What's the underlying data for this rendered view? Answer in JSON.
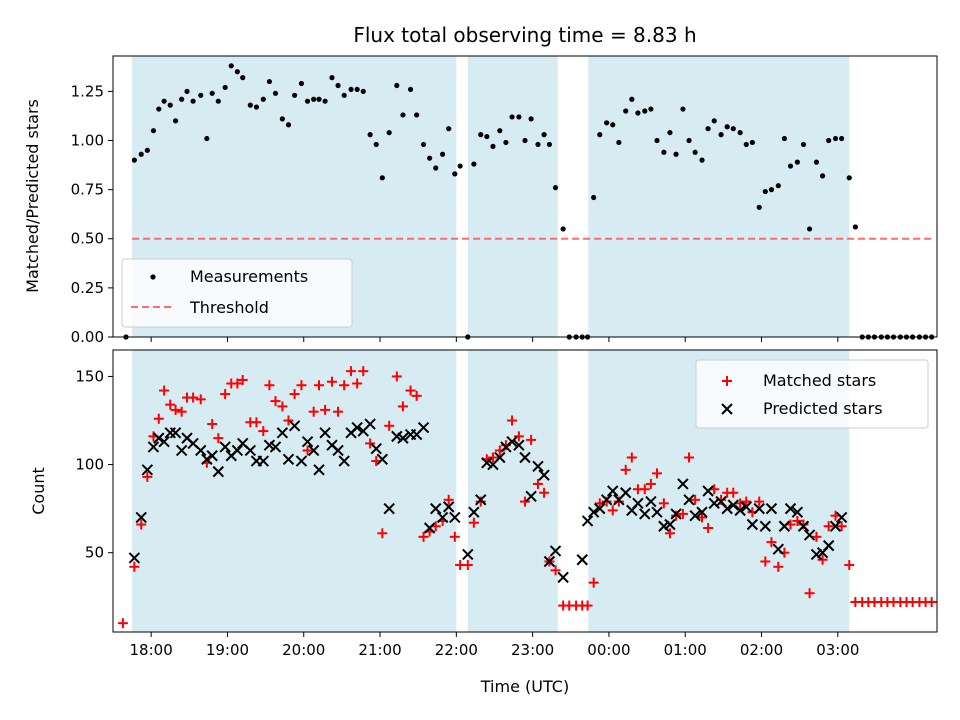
{
  "chart_data": [
    {
      "type": "scatter",
      "title": "Flux total observing time = 8.83 h",
      "xlabel": "",
      "ylabel": "Matched/Predicted stars",
      "ylim": [
        0,
        1.43
      ],
      "xlim_hours": [
        17.5,
        28.3
      ],
      "yticks": [
        0.0,
        0.25,
        0.5,
        0.75,
        1.0,
        1.25
      ],
      "ytick_labels": [
        "0.00",
        "0.25",
        "0.50",
        "0.75",
        "1.00",
        "1.25"
      ],
      "threshold": 0.5,
      "threshold_range_hours": [
        17.75,
        28.25
      ],
      "legend": {
        "position": "lower-left",
        "entries": [
          "Measurements",
          "Threshold"
        ]
      },
      "colors": {
        "points": "#000000",
        "threshold": "#ff6b6b"
      },
      "series": [
        {
          "name": "Measurements",
          "x": [
            17.67,
            17.78,
            17.87,
            17.95,
            18.03,
            18.1,
            18.17,
            18.25,
            18.32,
            18.4,
            18.47,
            18.55,
            18.65,
            18.73,
            18.8,
            18.88,
            18.97,
            19.05,
            19.13,
            19.2,
            19.3,
            19.38,
            19.47,
            19.55,
            19.63,
            19.72,
            19.8,
            19.88,
            19.97,
            20.05,
            20.13,
            20.2,
            20.28,
            20.37,
            20.45,
            20.53,
            20.62,
            20.7,
            20.78,
            20.87,
            20.95,
            21.03,
            21.12,
            21.22,
            21.3,
            21.4,
            21.48,
            21.57,
            21.65,
            21.73,
            21.82,
            21.9,
            21.98,
            22.05,
            22.15,
            22.23,
            22.32,
            22.4,
            22.48,
            22.57,
            22.65,
            22.73,
            22.82,
            22.9,
            22.98,
            23.07,
            23.15,
            23.22,
            23.3,
            23.4,
            23.48,
            23.57,
            23.65,
            23.72,
            23.8,
            23.88,
            23.97,
            24.05,
            24.13,
            24.22,
            24.3,
            24.38,
            24.47,
            24.55,
            24.63,
            24.72,
            24.8,
            24.88,
            24.97,
            25.05,
            25.13,
            25.22,
            25.3,
            25.38,
            25.47,
            25.55,
            25.63,
            25.72,
            25.8,
            25.88,
            25.97,
            26.05,
            26.13,
            26.22,
            26.3,
            26.38,
            26.47,
            26.55,
            26.63,
            26.72,
            26.8,
            26.88,
            26.97,
            27.05,
            27.15,
            27.23,
            27.32,
            27.4,
            27.48,
            27.57,
            27.65,
            27.73,
            27.82,
            27.9,
            27.98,
            28.07,
            28.15,
            28.23
          ],
          "y": [
            0.0,
            0.9,
            0.93,
            0.95,
            1.05,
            1.16,
            1.2,
            1.18,
            1.1,
            1.21,
            1.25,
            1.2,
            1.23,
            1.01,
            1.24,
            1.2,
            1.27,
            1.38,
            1.35,
            1.32,
            1.18,
            1.17,
            1.21,
            1.3,
            1.24,
            1.11,
            1.08,
            1.23,
            1.29,
            1.2,
            1.21,
            1.21,
            1.2,
            1.32,
            1.28,
            1.23,
            1.26,
            1.26,
            1.25,
            1.03,
            0.98,
            0.81,
            1.04,
            1.28,
            1.13,
            1.26,
            1.13,
            0.98,
            0.91,
            0.86,
            0.93,
            1.06,
            0.83,
            0.87,
            0.0,
            0.88,
            1.03,
            1.02,
            0.97,
            1.05,
            0.99,
            1.12,
            1.12,
            1.0,
            1.11,
            0.98,
            1.03,
            0.98,
            0.76,
            0.55,
            0.0,
            0.0,
            0.0,
            0.0,
            0.71,
            1.03,
            1.09,
            1.08,
            0.99,
            1.15,
            1.21,
            1.14,
            1.15,
            1.16,
            1.0,
            0.94,
            1.04,
            0.93,
            1.16,
            1.0,
            0.94,
            0.9,
            1.06,
            1.1,
            1.03,
            1.07,
            1.06,
            1.04,
            0.98,
            0.99,
            0.66,
            0.74,
            0.75,
            0.77,
            1.01,
            0.87,
            0.89,
            0.98,
            0.55,
            0.89,
            0.82,
            1.0,
            1.01,
            1.01,
            0.81,
            0.56,
            0.0,
            0.0,
            0.0,
            0.0,
            0.0,
            0.0,
            0.0,
            0.0,
            0.0,
            0.0,
            0.0,
            0.0
          ]
        }
      ]
    },
    {
      "type": "scatter",
      "title": "",
      "xlabel": "Time (UTC)",
      "ylabel": "Count",
      "ylim": [
        5,
        165
      ],
      "xlim_hours": [
        17.5,
        28.3
      ],
      "yticks": [
        50,
        100,
        150
      ],
      "ytick_labels": [
        "50",
        "100",
        "150"
      ],
      "xticks_hours": [
        18,
        19,
        20,
        21,
        22,
        23,
        24,
        25,
        26,
        27
      ],
      "xtick_labels": [
        "18:00",
        "19:00",
        "20:00",
        "21:00",
        "22:00",
        "23:00",
        "00:00",
        "01:00",
        "02:00",
        "03:00"
      ],
      "legend": {
        "position": "upper-right",
        "entries": [
          "Matched stars",
          "Predicted stars"
        ]
      },
      "colors": {
        "matched": "#ff0000",
        "predicted": "#000000"
      },
      "series": [
        {
          "name": "Matched stars",
          "marker": "plus",
          "x": [
            17.63,
            17.78,
            17.87,
            17.95,
            18.03,
            18.1,
            18.17,
            18.25,
            18.32,
            18.4,
            18.47,
            18.55,
            18.65,
            18.73,
            18.8,
            18.88,
            18.97,
            19.05,
            19.13,
            19.2,
            19.3,
            19.38,
            19.47,
            19.55,
            19.63,
            19.72,
            19.8,
            19.88,
            19.97,
            20.05,
            20.13,
            20.2,
            20.28,
            20.37,
            20.45,
            20.53,
            20.62,
            20.7,
            20.78,
            20.87,
            20.95,
            21.03,
            21.12,
            21.22,
            21.3,
            21.4,
            21.48,
            21.57,
            21.65,
            21.73,
            21.82,
            21.9,
            21.98,
            22.05,
            22.15,
            22.23,
            22.32,
            22.4,
            22.48,
            22.57,
            22.65,
            22.73,
            22.82,
            22.9,
            22.98,
            23.07,
            23.15,
            23.22,
            23.3,
            23.4,
            23.48,
            23.57,
            23.65,
            23.72,
            23.8,
            23.88,
            23.97,
            24.05,
            24.13,
            24.22,
            24.3,
            24.38,
            24.47,
            24.55,
            24.63,
            24.72,
            24.8,
            24.88,
            24.97,
            25.05,
            25.13,
            25.22,
            25.3,
            25.38,
            25.47,
            25.55,
            25.63,
            25.72,
            25.8,
            25.88,
            25.97,
            26.05,
            26.13,
            26.22,
            26.3,
            26.38,
            26.47,
            26.55,
            26.63,
            26.72,
            26.8,
            26.88,
            26.97,
            27.05,
            27.15,
            27.23,
            27.32,
            27.4,
            27.48,
            27.57,
            27.65,
            27.73,
            27.82,
            27.9,
            27.98,
            28.07,
            28.15,
            28.23
          ],
          "y": [
            10,
            42,
            66,
            93,
            116,
            126,
            142,
            134,
            131,
            130,
            138,
            138,
            137,
            101,
            123,
            115,
            140,
            146,
            146,
            148,
            124,
            124,
            119,
            145,
            136,
            133,
            125,
            140,
            145,
            108,
            130,
            145,
            131,
            147,
            130,
            145,
            153,
            146,
            153,
            112,
            102,
            61,
            122,
            150,
            133,
            142,
            139,
            59,
            62,
            65,
            68,
            80,
            59,
            43,
            43,
            67,
            79,
            103,
            104,
            108,
            111,
            125,
            116,
            79,
            114,
            89,
            84,
            45,
            40,
            20,
            20,
            20,
            20,
            20,
            33,
            78,
            79,
            74,
            79,
            97,
            104,
            86,
            86,
            89,
            95,
            78,
            61,
            71,
            72,
            104,
            80,
            70,
            64,
            86,
            80,
            84,
            84,
            78,
            79,
            73,
            79,
            45,
            56,
            42,
            50,
            66,
            68,
            66,
            27,
            59,
            46,
            65,
            71,
            65,
            43,
            22,
            22,
            22,
            22,
            22,
            22,
            22,
            22,
            22,
            22,
            22,
            22,
            22
          ]
        },
        {
          "name": "Predicted stars",
          "marker": "x",
          "x": [
            17.78,
            17.87,
            17.95,
            18.03,
            18.1,
            18.17,
            18.25,
            18.32,
            18.4,
            18.47,
            18.55,
            18.65,
            18.73,
            18.8,
            18.88,
            18.97,
            19.05,
            19.13,
            19.2,
            19.3,
            19.38,
            19.47,
            19.55,
            19.63,
            19.72,
            19.8,
            19.88,
            19.97,
            20.05,
            20.13,
            20.2,
            20.28,
            20.37,
            20.45,
            20.53,
            20.62,
            20.7,
            20.78,
            20.87,
            20.95,
            21.03,
            21.12,
            21.22,
            21.3,
            21.4,
            21.48,
            21.57,
            21.65,
            21.73,
            21.82,
            21.9,
            21.98,
            22.15,
            22.23,
            22.32,
            22.4,
            22.48,
            22.57,
            22.65,
            22.73,
            22.82,
            22.9,
            22.98,
            23.07,
            23.15,
            23.22,
            23.3,
            23.4,
            23.65,
            23.72,
            23.8,
            23.88,
            23.97,
            24.05,
            24.13,
            24.22,
            24.3,
            24.38,
            24.47,
            24.55,
            24.63,
            24.72,
            24.8,
            24.88,
            24.97,
            25.05,
            25.13,
            25.22,
            25.3,
            25.38,
            25.47,
            25.55,
            25.63,
            25.72,
            25.8,
            25.88,
            25.97,
            26.05,
            26.13,
            26.22,
            26.3,
            26.38,
            26.47,
            26.55,
            26.63,
            26.72,
            26.8,
            26.88,
            26.97,
            27.05
          ],
          "y": [
            47,
            70,
            97,
            110,
            115,
            113,
            118,
            118,
            108,
            115,
            112,
            108,
            103,
            105,
            96,
            110,
            105,
            108,
            112,
            108,
            102,
            102,
            111,
            110,
            118,
            103,
            122,
            102,
            113,
            108,
            97,
            118,
            111,
            108,
            102,
            118,
            121,
            119,
            123,
            109,
            103,
            75,
            116,
            115,
            117,
            117,
            121,
            64,
            75,
            70,
            76,
            70,
            49,
            73,
            80,
            101,
            100,
            104,
            110,
            113,
            111,
            104,
            82,
            99,
            94,
            45,
            51,
            36,
            46,
            68,
            73,
            75,
            80,
            85,
            80,
            84,
            74,
            78,
            72,
            79,
            73,
            65,
            66,
            72,
            89,
            80,
            71,
            73,
            85,
            78,
            79,
            75,
            77,
            74,
            76,
            66,
            75,
            65,
            75,
            52,
            65,
            75,
            73,
            65,
            60,
            49,
            50,
            54,
            65,
            70
          ]
        }
      ]
    }
  ],
  "bands_hours": [
    [
      17.75,
      22.0
    ],
    [
      22.15,
      23.33
    ],
    [
      23.73,
      27.15
    ]
  ]
}
